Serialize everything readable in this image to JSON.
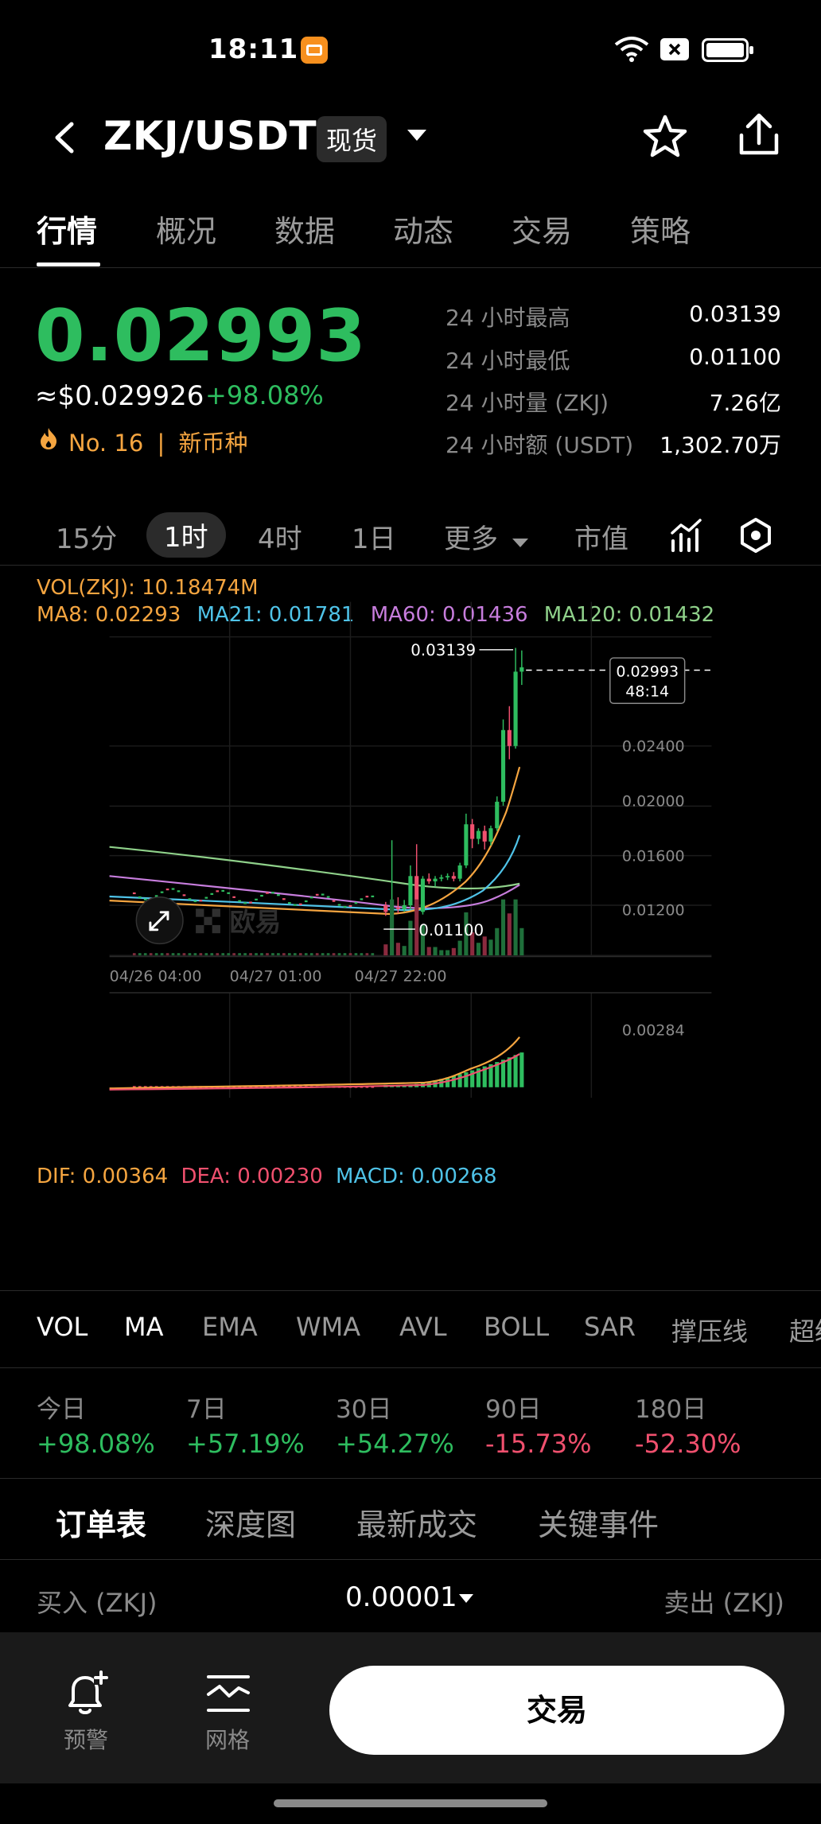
{
  "status_bar": {
    "time": "18:11"
  },
  "header": {
    "pair": "ZKJ/USDT",
    "market_type": "现货"
  },
  "tabs": [
    "行情",
    "概况",
    "数据",
    "动态",
    "交易",
    "策略"
  ],
  "price": {
    "last": "0.02993",
    "usd": "≈$0.029926",
    "change": "+98.08%",
    "rank": "No. 16",
    "rank_separator": "|",
    "tag": "新币种"
  },
  "stats": [
    {
      "label": "24 小时最高",
      "value": "0.03139"
    },
    {
      "label": "24 小时最低",
      "value": "0.01100"
    },
    {
      "label": "24 小时量 (ZKJ)",
      "value": "7.26亿"
    },
    {
      "label": "24 小时额 (USDT)",
      "value": "1,302.70万"
    }
  ],
  "timeframes": [
    "15分",
    "1时",
    "4时",
    "1日",
    "更多",
    "市值"
  ],
  "chart_info": {
    "vol": "VOL(ZKJ): 10.18474M",
    "ma8": "MA8: 0.02293",
    "ma21": "MA21: 0.01781",
    "ma60": "MA60: 0.01436",
    "ma120": "MA120: 0.01432",
    "high_marker": "0.03139",
    "low_marker": "0.01100",
    "current_price_tag": "0.02993",
    "countdown": "48:14",
    "watermark": "欧易"
  },
  "chart_data": {
    "type": "candlestick",
    "y_ticks": [
      "0.02400",
      "0.02000",
      "0.01600",
      "0.01200"
    ],
    "x_ticks": [
      "04/26 04:00",
      "04/27 01:00",
      "04/27 22:00"
    ],
    "series_colors": {
      "ma8": "#f5a540",
      "ma21": "#4fc3e8",
      "ma60": "#c77ddd",
      "ma120": "#8fd18a",
      "up": "#2ebd5f",
      "down": "#f0506e"
    },
    "candles": [
      {
        "o": 0.012,
        "h": 0.01225,
        "l": 0.0112,
        "c": 0.0115
      },
      {
        "o": 0.0115,
        "h": 0.0169,
        "l": 0.011,
        "c": 0.0118
      },
      {
        "o": 0.0118,
        "h": 0.0126,
        "l": 0.0114,
        "c": 0.0117
      },
      {
        "o": 0.0117,
        "h": 0.0124,
        "l": 0.0115,
        "c": 0.012
      },
      {
        "o": 0.012,
        "h": 0.015,
        "l": 0.0117,
        "c": 0.0142
      },
      {
        "o": 0.0142,
        "h": 0.0166,
        "l": 0.0112,
        "c": 0.0115
      },
      {
        "o": 0.0115,
        "h": 0.0142,
        "l": 0.0113,
        "c": 0.014
      },
      {
        "o": 0.014,
        "h": 0.0144,
        "l": 0.0136,
        "c": 0.0138
      },
      {
        "o": 0.0138,
        "h": 0.0142,
        "l": 0.0134,
        "c": 0.014
      },
      {
        "o": 0.014,
        "h": 0.0143,
        "l": 0.0138,
        "c": 0.0141
      },
      {
        "o": 0.0141,
        "h": 0.0144,
        "l": 0.0139,
        "c": 0.0142
      },
      {
        "o": 0.0142,
        "h": 0.0145,
        "l": 0.0138,
        "c": 0.014
      },
      {
        "o": 0.014,
        "h": 0.0152,
        "l": 0.0138,
        "c": 0.015
      },
      {
        "o": 0.015,
        "h": 0.0189,
        "l": 0.0148,
        "c": 0.0181
      },
      {
        "o": 0.0181,
        "h": 0.0185,
        "l": 0.0163,
        "c": 0.017
      },
      {
        "o": 0.017,
        "h": 0.0178,
        "l": 0.0166,
        "c": 0.0176
      },
      {
        "o": 0.0176,
        "h": 0.018,
        "l": 0.0162,
        "c": 0.0168
      },
      {
        "o": 0.0168,
        "h": 0.018,
        "l": 0.0165,
        "c": 0.0178
      },
      {
        "o": 0.0178,
        "h": 0.0202,
        "l": 0.0176,
        "c": 0.0198
      },
      {
        "o": 0.0198,
        "h": 0.026,
        "l": 0.0195,
        "c": 0.0252
      },
      {
        "o": 0.0252,
        "h": 0.027,
        "l": 0.023,
        "c": 0.024
      },
      {
        "o": 0.024,
        "h": 0.03139,
        "l": 0.0238,
        "c": 0.0296
      },
      {
        "o": 0.0296,
        "h": 0.0312,
        "l": 0.0286,
        "c": 0.02993
      }
    ],
    "macd_tick": "0.00284",
    "macd_info": {
      "dif": "DIF: 0.00364",
      "dea": "DEA: 0.00230",
      "macd": "MACD: 0.00268"
    }
  },
  "indicators": [
    "VOL",
    "MA",
    "EMA",
    "WMA",
    "AVL",
    "BOLL",
    "SAR",
    "撑压线",
    "超级"
  ],
  "performance": [
    {
      "label": "今日",
      "value": "+98.08%",
      "dir": "up"
    },
    {
      "label": "7日",
      "value": "+57.19%",
      "dir": "up"
    },
    {
      "label": "30日",
      "value": "+54.27%",
      "dir": "up"
    },
    {
      "label": "90日",
      "value": "-15.73%",
      "dir": "down"
    },
    {
      "label": "180日",
      "value": "-52.30%",
      "dir": "down"
    }
  ],
  "order_tabs": [
    "订单表",
    "深度图",
    "最新成交",
    "关键事件"
  ],
  "orderbook": {
    "buy_label": "买入 (ZKJ)",
    "tick_size": "0.00001",
    "sell_label": "卖出 (ZKJ)"
  },
  "bottom_bar": {
    "alert_label": "预警",
    "grid_label": "网格",
    "trade_label": "交易"
  }
}
